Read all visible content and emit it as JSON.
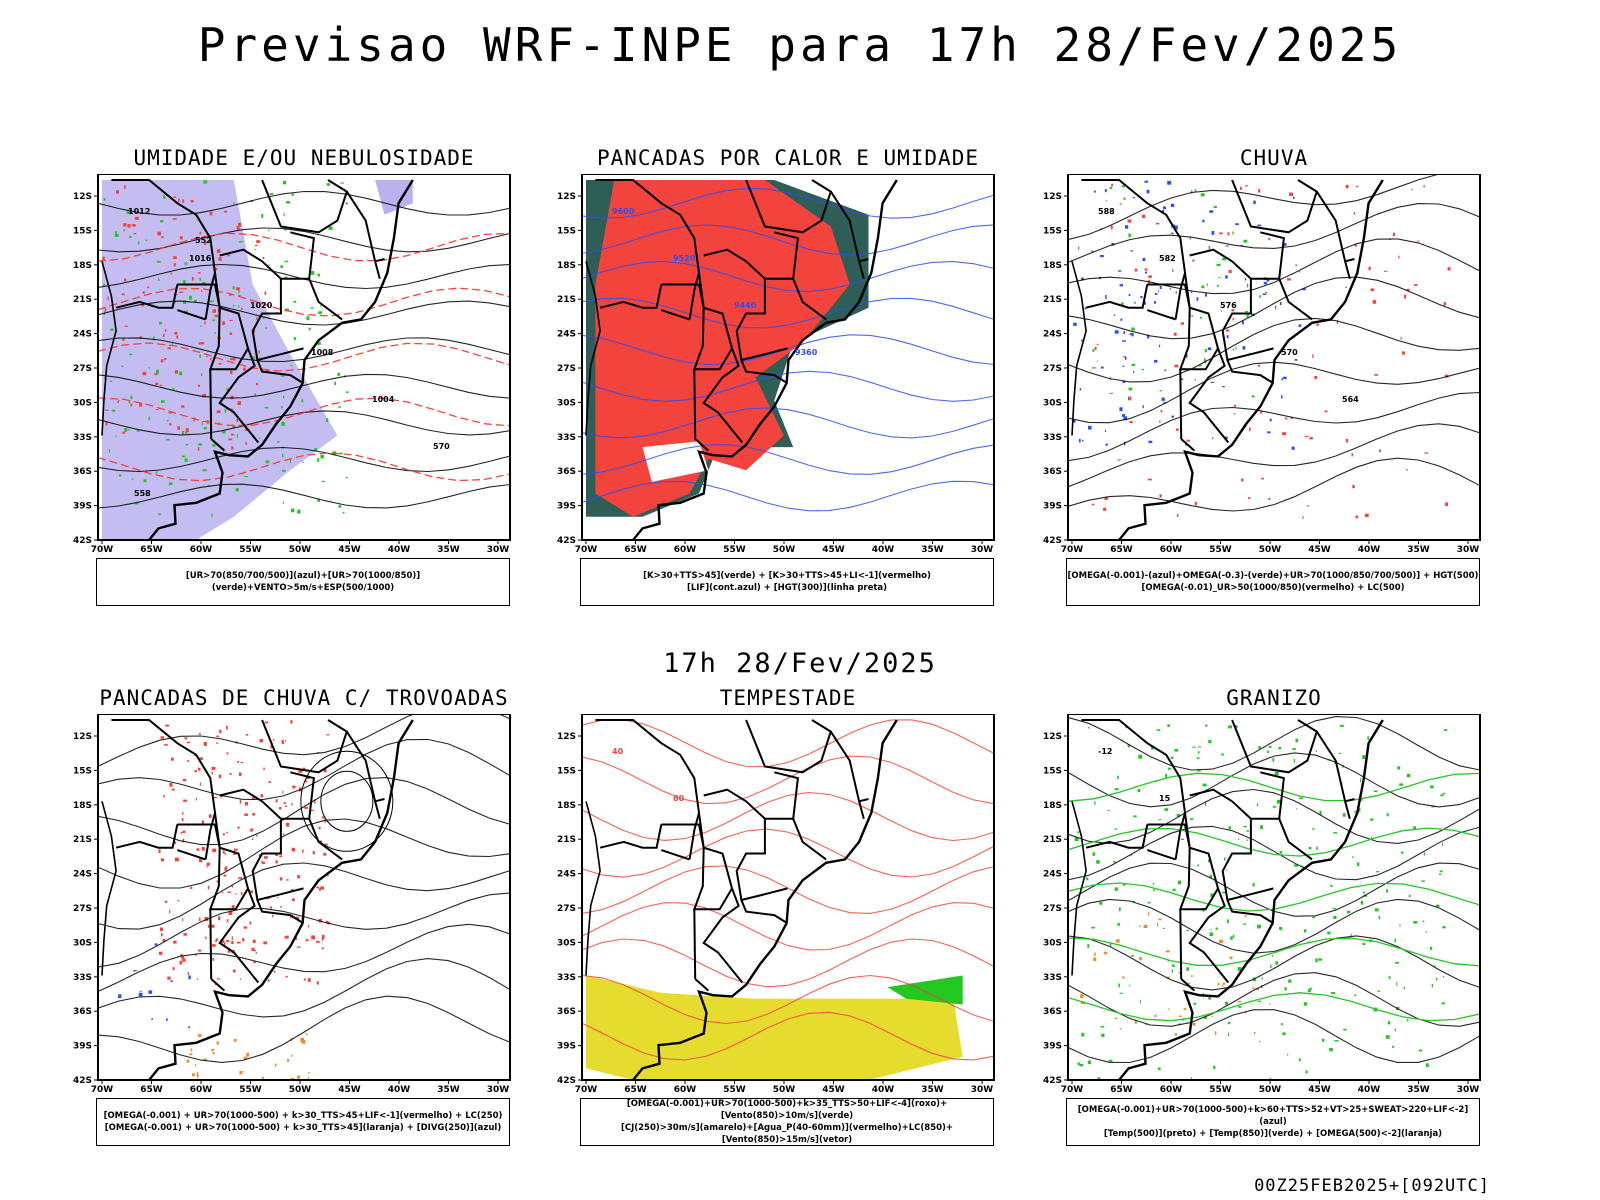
{
  "title": "Previsao WRF-INPE  para 17h 28/Fev/2025",
  "subtitle": "17h 28/Fev/2025",
  "footer": "00Z25FEB2025+[092UTC]",
  "lat_labels": [
    "12S",
    "15S",
    "18S",
    "21S",
    "24S",
    "27S",
    "30S",
    "33S",
    "36S",
    "39S",
    "42S"
  ],
  "lon_labels": [
    "70W",
    "65W",
    "60W",
    "55W",
    "50W",
    "45W",
    "40W",
    "35W",
    "30W"
  ],
  "panels": [
    {
      "title": "UMIDADE E/OU NEBULOSIDADE",
      "legend": [
        "[UR>70(850/700/500)](azul)+[UR>70(1000/850)](verde)+VENTO>5m/s+ESP(500/1000)"
      ],
      "contour_labels": [
        "1012",
        "1016",
        "1020",
        "1008",
        "1004",
        "570",
        "558",
        "552"
      ],
      "colors": {
        "fill": "#b9b2ee",
        "line1": "#22c722",
        "line2": "#f2443c",
        "line3": "#000000"
      }
    },
    {
      "title": "PANCADAS POR CALOR E UMIDADE",
      "legend": [
        "[K>30+TTS>45](verde)  +  [K>30+TTS>45+LI<-1](vermelho)",
        "[LIF](cont.azul)  +  [HGT(300)](linha preta)"
      ],
      "contour_labels": [
        "9600",
        "9520",
        "9440",
        "9360"
      ],
      "colors": {
        "fill": "#f2443c",
        "fill2": "#2f5e57",
        "line1": "#2f4df0",
        "line3": "#000000"
      }
    },
    {
      "title": "CHUVA",
      "legend": [
        "[OMEGA(-0.001)-(azul)+OMEGA(-0.3)-(verde)+UR>70(1000/850/700/500)] + HGT(500)",
        "[OMEGA(-0.01)_UR>50(1000/850)(vermelho) + LC(500)"
      ],
      "contour_labels": [
        "588",
        "582",
        "576",
        "570",
        "564"
      ],
      "colors": {
        "fill": "#2f4df0",
        "fill2": "#f2443c",
        "line3": "#000000"
      }
    },
    {
      "title": "PANCADAS DE CHUVA C/ TROVOADAS",
      "legend": [
        "[OMEGA(-0.001) + UR>70(1000-500) + k>30_TTS>45+LIF<-1](vermelho) + LC(250)",
        "[OMEGA(-0.001) + UR>70(1000-500) + k>30_TTS>45](laranja) + [DIVG(250)](azul)"
      ],
      "contour_labels": [],
      "colors": {
        "fill": "#f2443c",
        "fill2": "#f08a2a",
        "fill3": "#2f4df0",
        "line3": "#000000"
      }
    },
    {
      "title": "TEMPESTADE",
      "legend": [
        "[OMEGA(-0.001)+UR>70(1000-500)+k>35_TTS>50+LIF<-4](roxo)+[Vento(850)>10m/s](verde)",
        "[CJ(250)>30m/s](amarelo)+[Agua_P(40-60mm)](vermelho)+LC(850)+[Vento(850)>15m/s](vetor)"
      ],
      "contour_labels": [
        "40",
        "60"
      ],
      "colors": {
        "fill": "#e6dc2e",
        "fill2": "#22c722",
        "line1": "#f2443c",
        "line3": "#000000"
      }
    },
    {
      "title": "GRANIZO",
      "legend": [
        "[OMEGA(-0.001)+UR>70(1000-500)+k>60+TTS>52+VT>25+SWEAT>220+LIF<-2](azul)",
        "[Temp(500)](preto) + [Temp(850)](verde) + [OMEGA(500)<-2](laranja)"
      ],
      "contour_labels": [
        "-12",
        "15"
      ],
      "colors": {
        "line1": "#22c722",
        "fill2": "#f08a2a",
        "line3": "#000000"
      }
    }
  ]
}
